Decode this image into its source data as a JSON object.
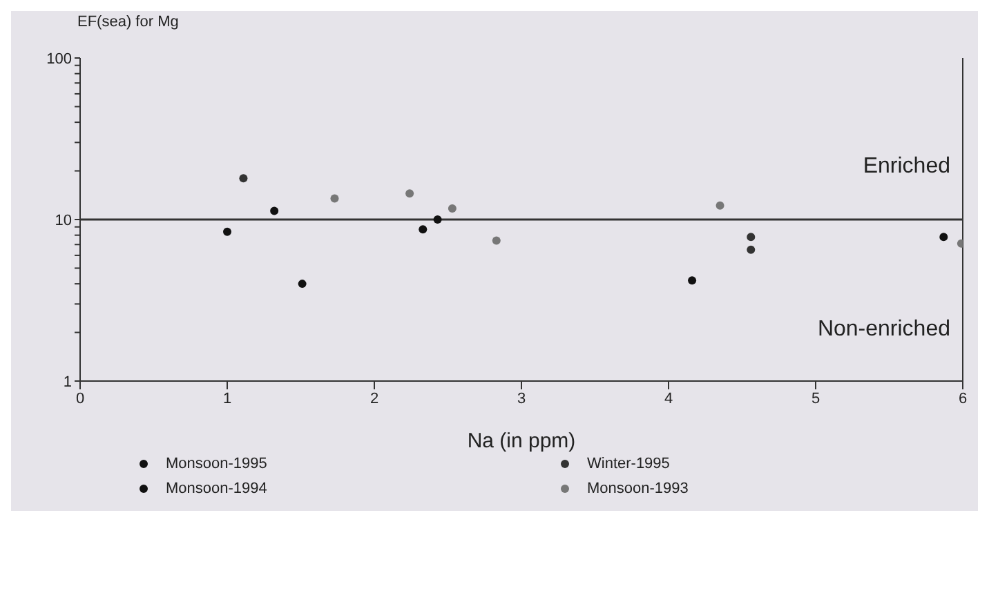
{
  "chart_data": {
    "type": "scatter",
    "ylabel": "EF(sea) for Mg",
    "xlabel": "Na (in ppm)",
    "xlim": [
      0,
      6
    ],
    "xticks": [
      0,
      1,
      2,
      3,
      4,
      5,
      6
    ],
    "ylim": [
      1,
      100
    ],
    "yticks": [
      1,
      {
        "value": 2,
        "label": null
      },
      {
        "value": 3,
        "label": null
      },
      {
        "value": 4,
        "label": null
      },
      {
        "value": 5,
        "label": null
      },
      {
        "value": 6,
        "label": null
      },
      {
        "value": 7,
        "label": null
      },
      {
        "value": 8,
        "label": null
      },
      {
        "value": 9,
        "label": null
      },
      10,
      {
        "value": 20,
        "label": null
      },
      {
        "value": 30,
        "label": null
      },
      {
        "value": 40,
        "label": null
      },
      {
        "value": 50,
        "label": null
      },
      {
        "value": 60,
        "label": null
      },
      {
        "value": 70,
        "label": null
      },
      {
        "value": 80,
        "label": null
      },
      {
        "value": 90,
        "label": null
      },
      100
    ],
    "log": "y",
    "legend": "bottom",
    "marker": "circle",
    "ref_lines": [
      {
        "axis": "y",
        "value": 10,
        "color": "#333333"
      }
    ],
    "annotations": [
      "Enriched",
      "Non-enriched"
    ],
    "series": [
      {
        "name": "Monsoon-1995",
        "color": "#111111",
        "x": [
          1.0,
          1.32,
          2.33,
          5.87
        ],
        "values": [
          8.4,
          11.3,
          8.7,
          7.8
        ]
      },
      {
        "name": "Winter-1995",
        "color": "#333333",
        "x": [
          1.11,
          4.56,
          4.56
        ],
        "values": [
          18,
          7.8,
          6.5
        ]
      },
      {
        "name": "Monsoon-1994",
        "color": "#111111",
        "x": [
          1.51,
          4.16,
          2.43
        ],
        "values": [
          4.0,
          4.2,
          10
        ]
      },
      {
        "name": "Monsoon-1993",
        "color": "#777777",
        "x": [
          1.73,
          2.24,
          2.53,
          2.83,
          4.35,
          5.99
        ],
        "values": [
          13.5,
          14.5,
          11.7,
          7.4,
          12.2,
          7.1
        ]
      }
    ]
  }
}
